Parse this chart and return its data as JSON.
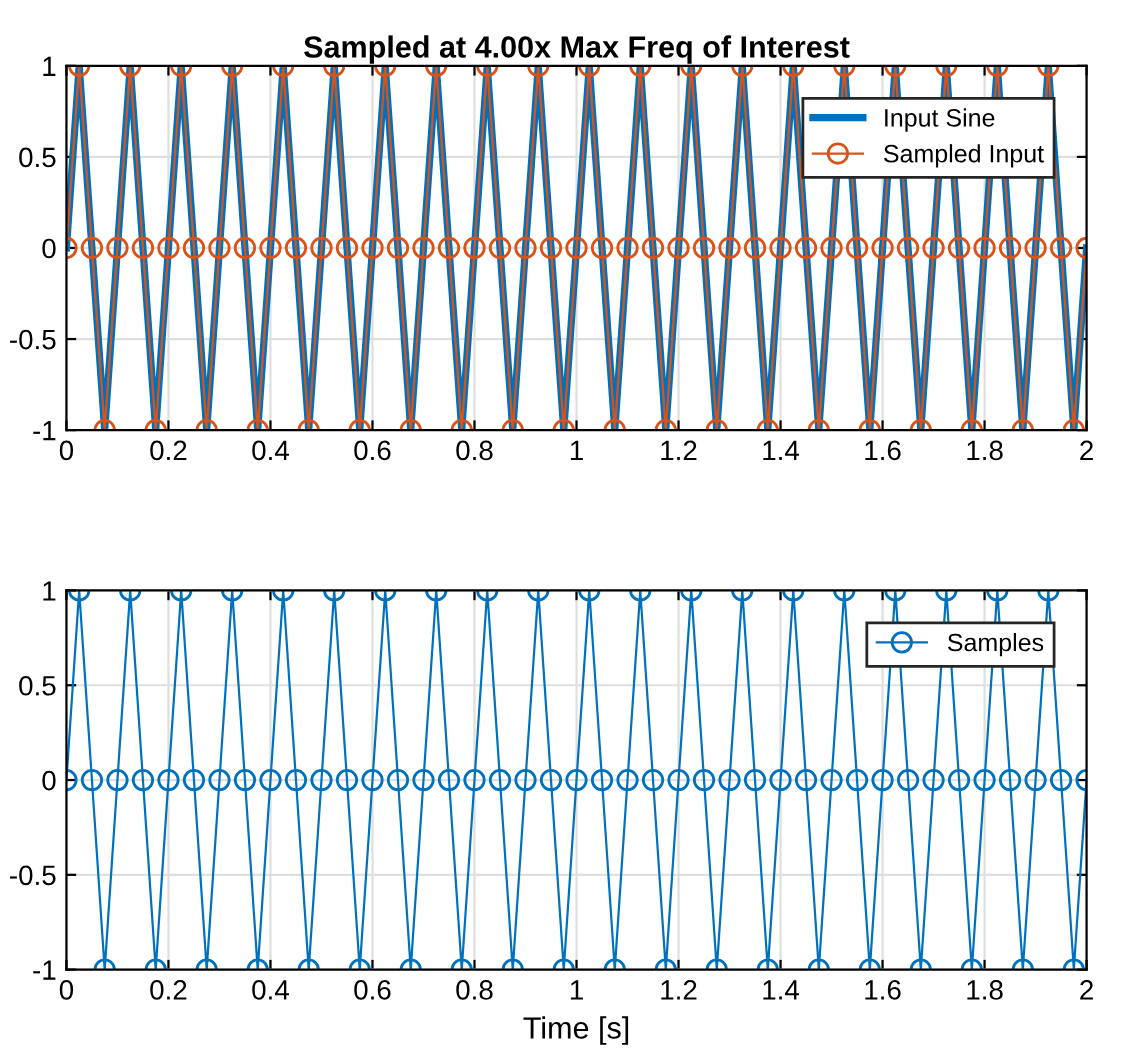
{
  "chart_data": [
    {
      "type": "line",
      "title": "Sampled at 4.00x Max Freq of Interest",
      "x": [
        0,
        0.025,
        0.05,
        0.075,
        0.1,
        0.125,
        0.15,
        0.175,
        0.2,
        0.225,
        0.25,
        0.275,
        0.3,
        0.325,
        0.35,
        0.375,
        0.4,
        0.425,
        0.45,
        0.475,
        0.5,
        0.525,
        0.55,
        0.575,
        0.6,
        0.625,
        0.65,
        0.675,
        0.7,
        0.725,
        0.75,
        0.775,
        0.8,
        0.825,
        0.85,
        0.875,
        0.9,
        0.925,
        0.95,
        0.975,
        1,
        1.025,
        1.05,
        1.075,
        1.1,
        1.125,
        1.15,
        1.175,
        1.2,
        1.225,
        1.25,
        1.275,
        1.3,
        1.325,
        1.35,
        1.375,
        1.4,
        1.425,
        1.45,
        1.475,
        1.5,
        1.525,
        1.55,
        1.575,
        1.6,
        1.625,
        1.65,
        1.675,
        1.7,
        1.725,
        1.75,
        1.775,
        1.8,
        1.825,
        1.85,
        1.875,
        1.9,
        1.925,
        1.95,
        1.975,
        2
      ],
      "series": [
        {
          "name": "Input Sine",
          "color": "#0072bd",
          "marker": "none",
          "values": [
            0,
            1,
            0,
            -1,
            0,
            1,
            0,
            -1,
            0,
            1,
            0,
            -1,
            0,
            1,
            0,
            -1,
            0,
            1,
            0,
            -1,
            0,
            1,
            0,
            -1,
            0,
            1,
            0,
            -1,
            0,
            1,
            0,
            -1,
            0,
            1,
            0,
            -1,
            0,
            1,
            0,
            -1,
            0,
            1,
            0,
            -1,
            0,
            1,
            0,
            -1,
            0,
            1,
            0,
            -1,
            0,
            1,
            0,
            -1,
            0,
            1,
            0,
            -1,
            0,
            1,
            0,
            -1,
            0,
            1,
            0,
            -1,
            0,
            1,
            0,
            -1,
            0,
            1,
            0,
            -1,
            0,
            1,
            0,
            -1,
            0
          ]
        },
        {
          "name": "Sampled Input",
          "color": "#d95319",
          "marker": "circle",
          "values": [
            0,
            1,
            0,
            -1,
            0,
            1,
            0,
            -1,
            0,
            1,
            0,
            -1,
            0,
            1,
            0,
            -1,
            0,
            1,
            0,
            -1,
            0,
            1,
            0,
            -1,
            0,
            1,
            0,
            -1,
            0,
            1,
            0,
            -1,
            0,
            1,
            0,
            -1,
            0,
            1,
            0,
            -1,
            0,
            1,
            0,
            -1,
            0,
            1,
            0,
            -1,
            0,
            1,
            0,
            -1,
            0,
            1,
            0,
            -1,
            0,
            1,
            0,
            -1,
            0,
            1,
            0,
            -1,
            0,
            1,
            0,
            -1,
            0,
            1,
            0,
            -1,
            0,
            1,
            0,
            -1,
            0,
            1,
            0,
            -1,
            0
          ]
        }
      ],
      "xlim": [
        0,
        2
      ],
      "ylim": [
        -1,
        1
      ],
      "xticks": [
        0,
        0.2,
        0.4,
        0.6,
        0.8,
        1,
        1.2,
        1.4,
        1.6,
        1.8,
        2
      ],
      "yticks": [
        -1,
        -0.5,
        0,
        0.5,
        1
      ],
      "grid": true,
      "legend": "top right"
    },
    {
      "type": "line",
      "xlabel": "Time [s]",
      "x": [
        0,
        0.025,
        0.05,
        0.075,
        0.1,
        0.125,
        0.15,
        0.175,
        0.2,
        0.225,
        0.25,
        0.275,
        0.3,
        0.325,
        0.35,
        0.375,
        0.4,
        0.425,
        0.45,
        0.475,
        0.5,
        0.525,
        0.55,
        0.575,
        0.6,
        0.625,
        0.65,
        0.675,
        0.7,
        0.725,
        0.75,
        0.775,
        0.8,
        0.825,
        0.85,
        0.875,
        0.9,
        0.925,
        0.95,
        0.975,
        1,
        1.025,
        1.05,
        1.075,
        1.1,
        1.125,
        1.15,
        1.175,
        1.2,
        1.225,
        1.25,
        1.275,
        1.3,
        1.325,
        1.35,
        1.375,
        1.4,
        1.425,
        1.45,
        1.475,
        1.5,
        1.525,
        1.55,
        1.575,
        1.6,
        1.625,
        1.65,
        1.675,
        1.7,
        1.725,
        1.75,
        1.775,
        1.8,
        1.825,
        1.85,
        1.875,
        1.9,
        1.925,
        1.95,
        1.975,
        2
      ],
      "series": [
        {
          "name": "Samples",
          "color": "#0072bd",
          "marker": "circle",
          "values": [
            0,
            1,
            0,
            -1,
            0,
            1,
            0,
            -1,
            0,
            1,
            0,
            -1,
            0,
            1,
            0,
            -1,
            0,
            1,
            0,
            -1,
            0,
            1,
            0,
            -1,
            0,
            1,
            0,
            -1,
            0,
            1,
            0,
            -1,
            0,
            1,
            0,
            -1,
            0,
            1,
            0,
            -1,
            0,
            1,
            0,
            -1,
            0,
            1,
            0,
            -1,
            0,
            1,
            0,
            -1,
            0,
            1,
            0,
            -1,
            0,
            1,
            0,
            -1,
            0,
            1,
            0,
            -1,
            0,
            1,
            0,
            -1,
            0,
            1,
            0,
            -1,
            0,
            1,
            0,
            -1,
            0,
            1,
            0,
            -1,
            0
          ]
        }
      ],
      "xlim": [
        0,
        2
      ],
      "ylim": [
        -1,
        1
      ],
      "xticks": [
        0,
        0.2,
        0.4,
        0.6,
        0.8,
        1,
        1.2,
        1.4,
        1.6,
        1.8,
        2
      ],
      "yticks": [
        -1,
        -0.5,
        0,
        0.5,
        1
      ],
      "grid": true,
      "legend": "top right"
    }
  ]
}
